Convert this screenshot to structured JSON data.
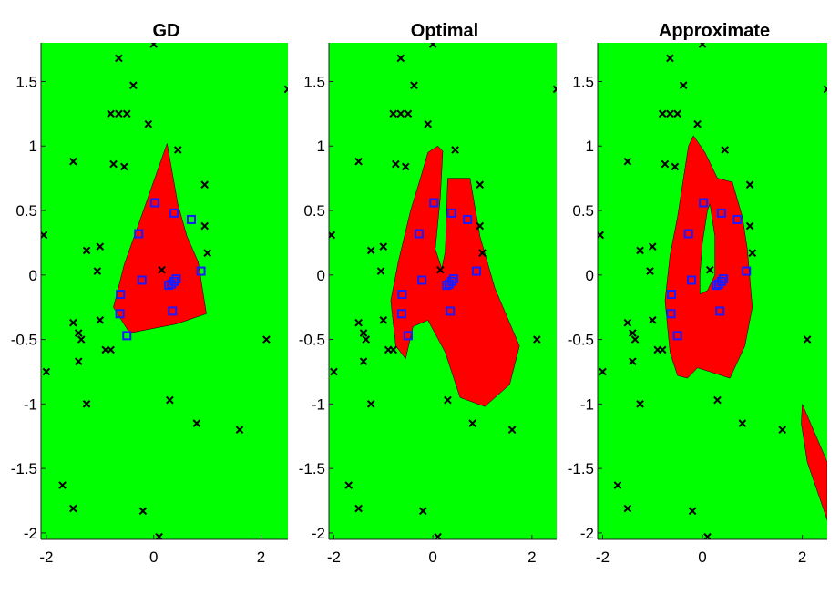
{
  "chart_data": [
    {
      "type": "scatter",
      "title": "GD",
      "xlim": [
        -2.1,
        2.5
      ],
      "ylim": [
        -2.05,
        1.8
      ],
      "xticks": [
        -2,
        0,
        2
      ],
      "yticks": [
        1.5,
        1,
        0.5,
        0,
        -0.5,
        -1,
        -1.5,
        -2
      ],
      "xtick_labels": [
        "-2",
        "0",
        "2"
      ],
      "ytick_labels": [
        "1.5",
        "1",
        "0.5",
        "0",
        "-0.5",
        "-1",
        "-1.5",
        "-2"
      ],
      "background_region_color": "#00ff00",
      "region_color": "#ff0000",
      "regions": [
        [
          [
            0.25,
            1.02
          ],
          [
            0.45,
            0.55
          ],
          [
            0.62,
            0.3
          ],
          [
            0.83,
            0.1
          ],
          [
            0.98,
            -0.3
          ],
          [
            0.42,
            -0.38
          ],
          [
            -0.45,
            -0.45
          ],
          [
            -0.75,
            -0.25
          ],
          [
            -0.55,
            0.08
          ],
          [
            -0.32,
            0.35
          ]
        ]
      ]
    },
    {
      "type": "scatter",
      "title": "Optimal",
      "xlim": [
        -2.1,
        2.5
      ],
      "ylim": [
        -2.05,
        1.8
      ],
      "xticks": [
        -2,
        0,
        2
      ],
      "yticks": [
        1.5,
        1,
        0.5,
        0,
        -0.5,
        -1,
        -1.5,
        -2
      ],
      "xtick_labels": [
        "-2",
        "0",
        "2"
      ],
      "ytick_labels": [
        "1.5",
        "1",
        "0.5",
        "0",
        "-0.5",
        "-1",
        "-1.5",
        "-2"
      ],
      "background_region_color": "#00ff00",
      "region_color": "#ff0000",
      "regions": [
        [
          [
            -0.1,
            0.95
          ],
          [
            0.1,
            1.0
          ],
          [
            0.2,
            0.96
          ],
          [
            0.15,
            0.6
          ],
          [
            0.05,
            0.2
          ],
          [
            0.18,
            0.05
          ],
          [
            0.25,
            0.18
          ],
          [
            0.3,
            0.75
          ],
          [
            0.75,
            0.75
          ],
          [
            0.95,
            0.3
          ],
          [
            1.25,
            -0.1
          ],
          [
            1.75,
            -0.55
          ],
          [
            1.55,
            -0.85
          ],
          [
            1.05,
            -1.02
          ],
          [
            0.55,
            -0.95
          ],
          [
            0.25,
            -0.6
          ],
          [
            -0.1,
            -0.35
          ],
          [
            -0.4,
            -0.4
          ],
          [
            -0.55,
            -0.65
          ],
          [
            -0.75,
            -0.55
          ],
          [
            -0.85,
            -0.2
          ],
          [
            -0.7,
            0.1
          ],
          [
            -0.45,
            0.5
          ],
          [
            -0.25,
            0.75
          ]
        ]
      ]
    },
    {
      "type": "scatter",
      "title": "Approximate",
      "xlim": [
        -2.1,
        2.5
      ],
      "ylim": [
        -2.05,
        1.8
      ],
      "xticks": [
        -2,
        0,
        2
      ],
      "yticks": [
        1.5,
        1,
        0.5,
        0,
        -0.5,
        -1,
        -1.5,
        -2
      ],
      "xtick_labels": [
        "-2",
        "0",
        "2"
      ],
      "ytick_labels": [
        "1.5",
        "1",
        "0.5",
        "0",
        "-0.5",
        "-1",
        "-1.5",
        "-2"
      ],
      "background_region_color": "#00ff00",
      "region_color": "#ff0000",
      "regions": [
        [
          [
            -0.28,
            1.0
          ],
          [
            -0.18,
            1.08
          ],
          [
            0.05,
            0.95
          ],
          [
            0.3,
            0.75
          ],
          [
            0.6,
            0.72
          ],
          [
            0.8,
            0.45
          ],
          [
            0.9,
            0.2
          ],
          [
            1.0,
            -0.25
          ],
          [
            0.85,
            -0.55
          ],
          [
            0.55,
            -0.8
          ],
          [
            0.15,
            -0.75
          ],
          [
            -0.1,
            -0.72
          ],
          [
            -0.3,
            -0.8
          ],
          [
            -0.5,
            -0.78
          ],
          [
            -0.65,
            -0.6
          ],
          [
            -0.75,
            -0.2
          ],
          [
            -0.65,
            0.15
          ],
          [
            -0.5,
            0.45
          ]
        ],
        [
          [
            2.0,
            -1.0
          ],
          [
            2.5,
            -1.45
          ],
          [
            2.5,
            -1.9
          ],
          [
            2.1,
            -1.45
          ],
          [
            1.98,
            -1.15
          ]
        ]
      ],
      "holes": [
        [
          [
            0.1,
            0.5
          ],
          [
            0.15,
            0.55
          ],
          [
            0.25,
            0.3
          ],
          [
            0.25,
            0.0
          ],
          [
            0.1,
            -0.12
          ],
          [
            -0.05,
            -0.15
          ],
          [
            -0.05,
            0.0
          ],
          [
            0.0,
            0.25
          ]
        ]
      ]
    }
  ],
  "shared_points": {
    "squares_color": "#1a1aff",
    "crosses_color": "#000000",
    "squares": [
      [
        0.02,
        0.56
      ],
      [
        0.38,
        0.48
      ],
      [
        0.7,
        0.43
      ],
      [
        -0.28,
        0.32
      ],
      [
        -0.22,
        -0.04
      ],
      [
        0.88,
        0.03
      ],
      [
        0.42,
        -0.03
      ],
      [
        0.38,
        -0.05
      ],
      [
        0.33,
        -0.07
      ],
      [
        0.28,
        -0.08
      ],
      [
        -0.62,
        -0.15
      ],
      [
        0.35,
        -0.28
      ],
      [
        -0.63,
        -0.3
      ],
      [
        -0.5,
        -0.47
      ]
    ],
    "crosses": [
      [
        0.0,
        1.79
      ],
      [
        -0.65,
        1.68
      ],
      [
        -0.38,
        1.47
      ],
      [
        2.5,
        1.44
      ],
      [
        -0.8,
        1.25
      ],
      [
        -0.65,
        1.25
      ],
      [
        -0.5,
        1.25
      ],
      [
        -0.1,
        1.17
      ],
      [
        -1.5,
        0.88
      ],
      [
        -0.75,
        0.86
      ],
      [
        -0.55,
        0.84
      ],
      [
        0.45,
        0.97
      ],
      [
        0.95,
        0.7
      ],
      [
        0.95,
        0.38
      ],
      [
        1.0,
        0.17
      ],
      [
        -2.05,
        0.31
      ],
      [
        -1.25,
        0.19
      ],
      [
        -1.0,
        0.22
      ],
      [
        -1.05,
        0.03
      ],
      [
        0.15,
        0.04
      ],
      [
        -1.0,
        -0.35
      ],
      [
        -0.8,
        -0.58
      ],
      [
        -0.9,
        -0.58
      ],
      [
        -1.5,
        -0.37
      ],
      [
        -1.4,
        -0.45
      ],
      [
        -1.35,
        -0.5
      ],
      [
        -1.4,
        -0.67
      ],
      [
        -1.25,
        -1.0
      ],
      [
        -2.0,
        -0.75
      ],
      [
        0.3,
        -0.97
      ],
      [
        0.8,
        -1.15
      ],
      [
        1.6,
        -1.2
      ],
      [
        2.1,
        -0.5
      ],
      [
        -1.7,
        -1.63
      ],
      [
        -1.5,
        -1.81
      ],
      [
        -0.2,
        -1.83
      ],
      [
        0.1,
        -2.03
      ]
    ]
  }
}
